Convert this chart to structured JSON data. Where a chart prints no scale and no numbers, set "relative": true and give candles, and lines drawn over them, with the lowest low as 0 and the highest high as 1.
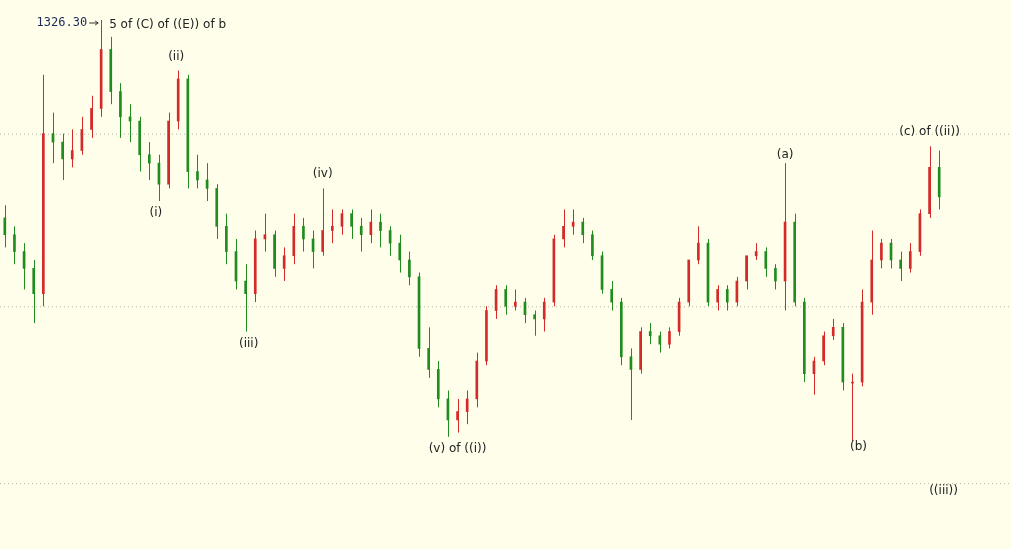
{
  "chart_data": {
    "type": "candlestick",
    "relative": true,
    "tick_labels": false,
    "legend": false,
    "categories": [
      null,
      null,
      null,
      null,
      null,
      null,
      null,
      null,
      null,
      null,
      null,
      null,
      null,
      null,
      null,
      null,
      null,
      null,
      null,
      null,
      null,
      null,
      null,
      null,
      null,
      null,
      null,
      null,
      null,
      null,
      null,
      null,
      null,
      null,
      null,
      null,
      null,
      null,
      null,
      null,
      null,
      null,
      null,
      null,
      null,
      null,
      null,
      null,
      null,
      null,
      null,
      null,
      null,
      null,
      null,
      null,
      null,
      null,
      null,
      null,
      null,
      null,
      null,
      null,
      null,
      null,
      null,
      null,
      null,
      null,
      null,
      null,
      null,
      null,
      null,
      null,
      null,
      null,
      null,
      null,
      null,
      null,
      null,
      null,
      null,
      null,
      null,
      null,
      null,
      null,
      null,
      null,
      null,
      null,
      null,
      null,
      null,
      null
    ],
    "ohlc": [
      [
        0.53,
        0.56,
        0.46,
        0.49
      ],
      [
        0.49,
        0.51,
        0.42,
        0.45
      ],
      [
        0.45,
        0.47,
        0.36,
        0.41
      ],
      [
        0.41,
        0.43,
        0.28,
        0.35
      ],
      [
        0.35,
        0.87,
        0.32,
        0.73
      ],
      [
        0.73,
        0.78,
        0.66,
        0.71
      ],
      [
        0.71,
        0.73,
        0.62,
        0.67
      ],
      [
        0.67,
        0.74,
        0.65,
        0.69
      ],
      [
        0.69,
        0.77,
        0.68,
        0.74
      ],
      [
        0.74,
        0.82,
        0.72,
        0.79
      ],
      [
        0.79,
        1.0,
        0.77,
        0.93
      ],
      [
        0.93,
        0.96,
        0.8,
        0.83
      ],
      [
        0.83,
        0.85,
        0.72,
        0.77
      ],
      [
        0.77,
        0.8,
        0.71,
        0.76
      ],
      [
        0.76,
        0.77,
        0.64,
        0.68
      ],
      [
        0.68,
        0.71,
        0.62,
        0.66
      ],
      [
        0.66,
        0.68,
        0.57,
        0.61
      ],
      [
        0.61,
        0.78,
        0.6,
        0.76
      ],
      [
        0.76,
        0.88,
        0.74,
        0.86
      ],
      [
        0.86,
        0.87,
        0.6,
        0.64
      ],
      [
        0.64,
        0.68,
        0.6,
        0.62
      ],
      [
        0.62,
        0.66,
        0.57,
        0.6
      ],
      [
        0.6,
        0.61,
        0.48,
        0.51
      ],
      [
        0.51,
        0.54,
        0.42,
        0.45
      ],
      [
        0.45,
        0.48,
        0.36,
        0.38
      ],
      [
        0.38,
        0.42,
        0.26,
        0.35
      ],
      [
        0.35,
        0.5,
        0.33,
        0.48
      ],
      [
        0.48,
        0.54,
        0.45,
        0.49
      ],
      [
        0.49,
        0.5,
        0.39,
        0.41
      ],
      [
        0.41,
        0.46,
        0.38,
        0.44
      ],
      [
        0.44,
        0.54,
        0.42,
        0.51
      ],
      [
        0.51,
        0.53,
        0.45,
        0.48
      ],
      [
        0.48,
        0.5,
        0.41,
        0.45
      ],
      [
        0.45,
        0.6,
        0.44,
        0.5
      ],
      [
        0.5,
        0.55,
        0.47,
        0.51
      ],
      [
        0.51,
        0.55,
        0.49,
        0.54
      ],
      [
        0.54,
        0.55,
        0.48,
        0.51
      ],
      [
        0.51,
        0.53,
        0.45,
        0.49
      ],
      [
        0.49,
        0.55,
        0.47,
        0.52
      ],
      [
        0.52,
        0.54,
        0.46,
        0.5
      ],
      [
        0.5,
        0.51,
        0.44,
        0.47
      ],
      [
        0.47,
        0.49,
        0.4,
        0.43
      ],
      [
        0.43,
        0.45,
        0.37,
        0.39
      ],
      [
        0.39,
        0.4,
        0.2,
        0.22
      ],
      [
        0.22,
        0.27,
        0.15,
        0.17
      ],
      [
        0.17,
        0.19,
        0.08,
        0.1
      ],
      [
        0.1,
        0.12,
        0.01,
        0.05
      ],
      [
        0.05,
        0.1,
        0.02,
        0.07
      ],
      [
        0.07,
        0.12,
        0.04,
        0.1
      ],
      [
        0.1,
        0.21,
        0.08,
        0.19
      ],
      [
        0.19,
        0.32,
        0.18,
        0.31
      ],
      [
        0.31,
        0.37,
        0.29,
        0.36
      ],
      [
        0.36,
        0.37,
        0.3,
        0.32
      ],
      [
        0.32,
        0.36,
        0.31,
        0.33
      ],
      [
        0.33,
        0.34,
        0.28,
        0.3
      ],
      [
        0.3,
        0.31,
        0.25,
        0.29
      ],
      [
        0.29,
        0.34,
        0.26,
        0.33
      ],
      [
        0.33,
        0.49,
        0.32,
        0.48
      ],
      [
        0.48,
        0.55,
        0.46,
        0.51
      ],
      [
        0.51,
        0.55,
        0.49,
        0.52
      ],
      [
        0.52,
        0.53,
        0.47,
        0.49
      ],
      [
        0.49,
        0.5,
        0.43,
        0.44
      ],
      [
        0.44,
        0.45,
        0.35,
        0.36
      ],
      [
        0.36,
        0.38,
        0.31,
        0.33
      ],
      [
        0.33,
        0.34,
        0.18,
        0.2
      ],
      [
        0.2,
        0.22,
        0.05,
        0.17
      ],
      [
        0.17,
        0.27,
        0.16,
        0.26
      ],
      [
        0.26,
        0.28,
        0.23,
        0.25
      ],
      [
        0.25,
        0.26,
        0.21,
        0.23
      ],
      [
        0.23,
        0.27,
        0.22,
        0.26
      ],
      [
        0.26,
        0.34,
        0.25,
        0.33
      ],
      [
        0.33,
        0.43,
        0.32,
        0.43
      ],
      [
        0.43,
        0.51,
        0.42,
        0.47
      ],
      [
        0.47,
        0.48,
        0.32,
        0.33
      ],
      [
        0.33,
        0.37,
        0.31,
        0.36
      ],
      [
        0.36,
        0.37,
        0.31,
        0.33
      ],
      [
        0.33,
        0.39,
        0.32,
        0.38
      ],
      [
        0.38,
        0.44,
        0.36,
        0.44
      ],
      [
        0.44,
        0.47,
        0.43,
        0.45
      ],
      [
        0.45,
        0.46,
        0.39,
        0.41
      ],
      [
        0.41,
        0.42,
        0.36,
        0.38
      ],
      [
        0.38,
        0.66,
        0.31,
        0.52
      ],
      [
        0.52,
        0.54,
        0.32,
        0.33
      ],
      [
        0.33,
        0.34,
        0.14,
        0.16
      ],
      [
        0.16,
        0.2,
        0.11,
        0.19
      ],
      [
        0.19,
        0.26,
        0.18,
        0.25
      ],
      [
        0.25,
        0.29,
        0.24,
        0.27
      ],
      [
        0.27,
        0.28,
        0.12,
        0.14
      ],
      [
        0.14,
        0.16,
        0.0,
        0.14
      ],
      [
        0.14,
        0.36,
        0.13,
        0.33
      ],
      [
        0.33,
        0.5,
        0.3,
        0.43
      ],
      [
        0.43,
        0.48,
        0.41,
        0.47
      ],
      [
        0.47,
        0.48,
        0.41,
        0.43
      ],
      [
        0.43,
        0.45,
        0.38,
        0.41
      ],
      [
        0.41,
        0.47,
        0.4,
        0.45
      ],
      [
        0.45,
        0.55,
        0.44,
        0.54
      ],
      [
        0.54,
        0.7,
        0.53,
        0.65
      ],
      [
        0.65,
        0.69,
        0.55,
        0.58
      ]
    ],
    "ref_lines": [
      {
        "axis": "y",
        "value": 0.73,
        "line_style": "dotted",
        "color": "#b4b4a8"
      },
      {
        "axis": "y",
        "value": 0.32,
        "line_style": "dotted",
        "color": "#b4b4a8"
      },
      {
        "axis": "y",
        "value": -0.1,
        "line_style": "dotted",
        "color": "#b4b4a8"
      }
    ],
    "annotations": [
      "1326.30",
      "5 of (C) of ((E)) of b",
      "(ii)",
      "(i)",
      "(iv)",
      "(iii)",
      "(v) of ((i))",
      "(a)",
      "(c) of ((ii))",
      "(b)",
      "((iii))"
    ]
  }
}
